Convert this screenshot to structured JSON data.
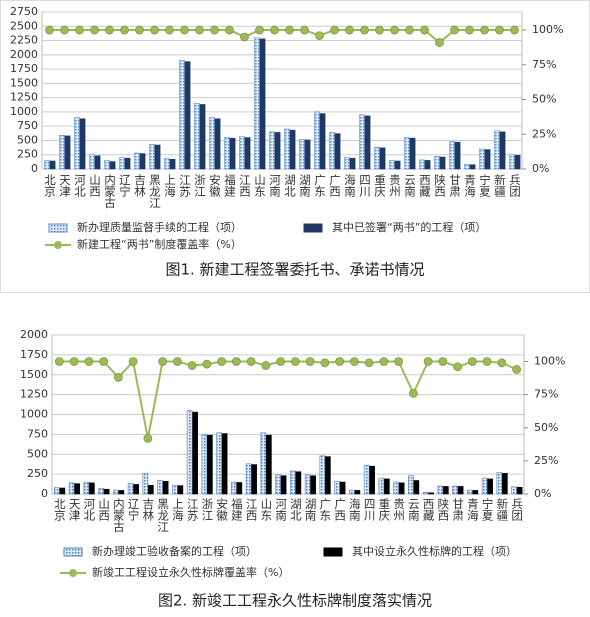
{
  "chart_data": [
    {
      "type": "bar-line",
      "title": "图1. 新建工程签署委托书、承诺书情况",
      "categories": [
        "北京",
        "天津",
        "河北",
        "山西",
        "内蒙古",
        "辽宁",
        "吉林",
        "黑龙江",
        "上海",
        "江苏",
        "浙江",
        "安徽",
        "福建",
        "江西",
        "山东",
        "河南",
        "湖北",
        "湖南",
        "广东",
        "广西",
        "海南",
        "四川",
        "重庆",
        "贵州",
        "云南",
        "西藏",
        "陕西",
        "甘肃",
        "青海",
        "宁夏",
        "新疆",
        "兵团"
      ],
      "series": [
        {
          "name": "新办理质量监督手续的工程（项）",
          "color": "#5b8fc9",
          "pattern": "hatch",
          "values": [
            150,
            590,
            900,
            250,
            150,
            200,
            280,
            430,
            180,
            1900,
            1150,
            900,
            550,
            570,
            2300,
            650,
            700,
            520,
            1000,
            640,
            200,
            950,
            380,
            150,
            550,
            160,
            220,
            480,
            80,
            350,
            670,
            250
          ]
        },
        {
          "name": "其中已签署“两书”的工程（项）",
          "color": "#1f3864",
          "pattern": "solid",
          "values": [
            140,
            580,
            880,
            230,
            130,
            190,
            270,
            420,
            170,
            1880,
            1130,
            880,
            540,
            550,
            2280,
            640,
            680,
            510,
            970,
            620,
            190,
            930,
            370,
            140,
            540,
            150,
            210,
            470,
            75,
            340,
            650,
            240
          ]
        },
        {
          "name": "新建工程“两书”制度覆盖率（%）",
          "color": "#9bbb59",
          "axis": "y2",
          "values": [
            100,
            100,
            100,
            100,
            100,
            100,
            100,
            100,
            100,
            100,
            100,
            100,
            100,
            95,
            100,
            100,
            100,
            100,
            96,
            100,
            100,
            100,
            100,
            100,
            100,
            100,
            91,
            100,
            100,
            100,
            100,
            100
          ]
        }
      ],
      "ylim": [
        0,
        2750
      ],
      "yticks": [
        0,
        250,
        500,
        750,
        1000,
        1250,
        1500,
        1750,
        2000,
        2250,
        2500,
        2750
      ],
      "y2lim": [
        0,
        113
      ],
      "y2ticks": [
        {
          "value": 0,
          "label": "0%"
        },
        {
          "value": 25,
          "label": "25%"
        },
        {
          "value": 50,
          "label": "50%"
        },
        {
          "value": 75,
          "label": "75%"
        },
        {
          "value": 100,
          "label": "100%"
        }
      ],
      "grid": true
    },
    {
      "type": "bar-line",
      "title": "图2. 新竣工工程永久性标牌制度落实情况",
      "categories": [
        "北京",
        "天津",
        "河北",
        "山西",
        "内蒙古",
        "辽宁",
        "吉林",
        "黑龙江",
        "上海",
        "江苏",
        "浙江",
        "安徽",
        "福建",
        "江西",
        "山东",
        "河南",
        "湖北",
        "湖南",
        "广东",
        "广西",
        "海南",
        "四川",
        "重庆",
        "贵州",
        "云南",
        "西藏",
        "陕西",
        "甘肃",
        "青海",
        "宁夏",
        "新疆",
        "兵团"
      ],
      "series": [
        {
          "name": "新办理竣工验收备案的工程（项）",
          "color": "#4f81bd",
          "pattern": "hatch",
          "values": [
            80,
            140,
            150,
            70,
            50,
            130,
            260,
            170,
            110,
            1050,
            750,
            770,
            150,
            380,
            770,
            240,
            290,
            240,
            480,
            160,
            50,
            360,
            200,
            150,
            230,
            20,
            100,
            100,
            50,
            200,
            270,
            90
          ]
        },
        {
          "name": "其中设立永久性标牌的工程（项）",
          "color": "#000000",
          "pattern": "solid",
          "values": [
            75,
            130,
            140,
            60,
            45,
            120,
            110,
            160,
            105,
            1030,
            740,
            760,
            145,
            370,
            740,
            230,
            280,
            230,
            470,
            150,
            45,
            350,
            190,
            140,
            170,
            15,
            95,
            95,
            45,
            190,
            260,
            85
          ]
        },
        {
          "name": "新竣工工程设立永久性标牌覆盖率（%）",
          "color": "#9bbb59",
          "axis": "y2",
          "values": [
            100,
            100,
            100,
            100,
            88,
            100,
            42,
            100,
            100,
            97,
            98,
            100,
            100,
            100,
            97,
            100,
            100,
            100,
            99,
            100,
            100,
            99,
            100,
            100,
            76,
            100,
            100,
            96,
            100,
            100,
            99,
            94
          ]
        }
      ],
      "ylim": [
        0,
        2000
      ],
      "yticks": [
        0,
        250,
        500,
        750,
        1000,
        1250,
        1500,
        1750,
        2000
      ],
      "y2lim": [
        0,
        120
      ],
      "y2ticks": [
        {
          "value": 0,
          "label": "0%"
        },
        {
          "value": 25,
          "label": "25%"
        },
        {
          "value": 50,
          "label": "50%"
        },
        {
          "value": 75,
          "label": "75%"
        },
        {
          "value": 100,
          "label": "100%"
        }
      ],
      "grid": true
    }
  ]
}
